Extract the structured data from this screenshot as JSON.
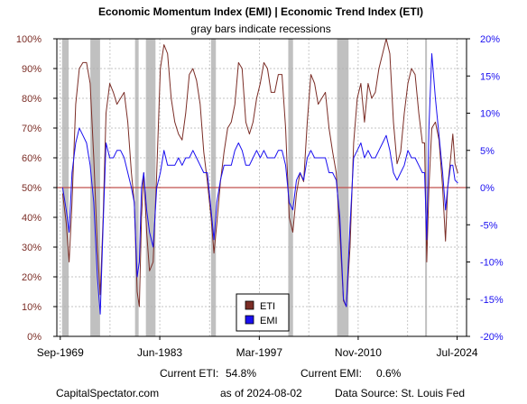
{
  "chart_data": {
    "type": "line",
    "title": "Economic Momentum Index (EMI) | Economic Trend Index (ETI)",
    "subtitle": "gray bars indicate recessions",
    "left_axis": {
      "ylim": [
        0,
        100
      ],
      "ticks": [
        0,
        10,
        20,
        30,
        40,
        50,
        60,
        70,
        80,
        90,
        100
      ],
      "tick_labels": [
        "0%",
        "10%",
        "20%",
        "30%",
        "40%",
        "50%",
        "60%",
        "70%",
        "80%",
        "90%",
        "100%"
      ]
    },
    "right_axis": {
      "ylim": [
        -20,
        20
      ],
      "ticks": [
        -20,
        -15,
        -10,
        -5,
        0,
        5,
        10,
        15,
        20
      ],
      "tick_labels": [
        "-20%",
        "-15%",
        "-10%",
        "-5%",
        "0%",
        "5%",
        "10%",
        "15%",
        "20%"
      ]
    },
    "x_axis": {
      "xlim": [
        1969.2,
        2025.8
      ],
      "ticks": [
        1969.67,
        1983.42,
        1997.17,
        2010.83,
        2024.5
      ],
      "tick_labels": [
        "Sep-1969",
        "Jun-1983",
        "Mar-1997",
        "Nov-2010",
        "Jul-2024"
      ]
    },
    "reference_line": {
      "axis": "right",
      "value": 0,
      "color": "#c0504d"
    },
    "recessions": [
      [
        1969.92,
        1970.83
      ],
      [
        1973.83,
        1975.17
      ],
      [
        1980.0,
        1980.5
      ],
      [
        1981.5,
        1982.83
      ],
      [
        1990.5,
        1991.17
      ],
      [
        2001.17,
        2001.83
      ],
      [
        2007.92,
        2009.5
      ],
      [
        2020.08,
        2020.33
      ]
    ],
    "legend": {
      "position": "bottom-left",
      "entries": [
        "ETI",
        "EMI"
      ]
    },
    "series": [
      {
        "name": "ETI",
        "axis": "left",
        "color": "#7b2d26",
        "points": [
          [
            1970.0,
            48
          ],
          [
            1970.5,
            38
          ],
          [
            1970.9,
            25
          ],
          [
            1971.3,
            45
          ],
          [
            1971.8,
            78
          ],
          [
            1972.3,
            90
          ],
          [
            1972.8,
            92
          ],
          [
            1973.3,
            92
          ],
          [
            1973.8,
            85
          ],
          [
            1974.3,
            60
          ],
          [
            1974.8,
            30
          ],
          [
            1975.2,
            14
          ],
          [
            1975.6,
            40
          ],
          [
            1976.0,
            75
          ],
          [
            1976.5,
            85
          ],
          [
            1977.0,
            82
          ],
          [
            1977.5,
            78
          ],
          [
            1978.0,
            80
          ],
          [
            1978.5,
            82
          ],
          [
            1979.0,
            72
          ],
          [
            1979.5,
            55
          ],
          [
            1979.9,
            45
          ],
          [
            1980.3,
            15
          ],
          [
            1980.6,
            10
          ],
          [
            1980.9,
            40
          ],
          [
            1981.2,
            55
          ],
          [
            1981.6,
            35
          ],
          [
            1982.0,
            22
          ],
          [
            1982.5,
            25
          ],
          [
            1983.0,
            55
          ],
          [
            1983.5,
            90
          ],
          [
            1984.0,
            98
          ],
          [
            1984.5,
            95
          ],
          [
            1985.0,
            80
          ],
          [
            1985.5,
            72
          ],
          [
            1986.0,
            68
          ],
          [
            1986.5,
            66
          ],
          [
            1987.0,
            75
          ],
          [
            1987.5,
            88
          ],
          [
            1988.0,
            90
          ],
          [
            1988.5,
            86
          ],
          [
            1989.0,
            78
          ],
          [
            1989.5,
            62
          ],
          [
            1990.0,
            52
          ],
          [
            1990.5,
            40
          ],
          [
            1990.9,
            28
          ],
          [
            1991.3,
            38
          ],
          [
            1991.8,
            52
          ],
          [
            1992.3,
            62
          ],
          [
            1992.8,
            70
          ],
          [
            1993.3,
            72
          ],
          [
            1993.8,
            78
          ],
          [
            1994.3,
            92
          ],
          [
            1994.8,
            90
          ],
          [
            1995.3,
            72
          ],
          [
            1995.8,
            68
          ],
          [
            1996.3,
            72
          ],
          [
            1996.8,
            80
          ],
          [
            1997.3,
            85
          ],
          [
            1997.8,
            92
          ],
          [
            1998.3,
            90
          ],
          [
            1998.8,
            82
          ],
          [
            1999.3,
            82
          ],
          [
            1999.8,
            88
          ],
          [
            2000.3,
            88
          ],
          [
            2000.8,
            70
          ],
          [
            2001.3,
            40
          ],
          [
            2001.8,
            35
          ],
          [
            2002.3,
            48
          ],
          [
            2002.8,
            55
          ],
          [
            2003.3,
            52
          ],
          [
            2003.8,
            72
          ],
          [
            2004.3,
            88
          ],
          [
            2004.8,
            85
          ],
          [
            2005.3,
            78
          ],
          [
            2005.8,
            80
          ],
          [
            2006.3,
            82
          ],
          [
            2006.8,
            70
          ],
          [
            2007.3,
            62
          ],
          [
            2007.8,
            55
          ],
          [
            2008.3,
            35
          ],
          [
            2008.8,
            12
          ],
          [
            2009.2,
            10
          ],
          [
            2009.7,
            30
          ],
          [
            2010.2,
            65
          ],
          [
            2010.7,
            80
          ],
          [
            2011.2,
            85
          ],
          [
            2011.7,
            72
          ],
          [
            2012.2,
            85
          ],
          [
            2012.7,
            80
          ],
          [
            2013.2,
            82
          ],
          [
            2013.7,
            90
          ],
          [
            2014.2,
            95
          ],
          [
            2014.7,
            100
          ],
          [
            2015.2,
            95
          ],
          [
            2015.7,
            72
          ],
          [
            2016.2,
            58
          ],
          [
            2016.7,
            62
          ],
          [
            2017.2,
            75
          ],
          [
            2017.7,
            85
          ],
          [
            2018.2,
            90
          ],
          [
            2018.7,
            88
          ],
          [
            2019.2,
            75
          ],
          [
            2019.7,
            65
          ],
          [
            2020.0,
            65
          ],
          [
            2020.3,
            25
          ],
          [
            2020.6,
            50
          ],
          [
            2021.0,
            70
          ],
          [
            2021.5,
            72
          ],
          [
            2022.0,
            66
          ],
          [
            2022.5,
            50
          ],
          [
            2022.9,
            32
          ],
          [
            2023.2,
            50
          ],
          [
            2023.6,
            60
          ],
          [
            2023.9,
            68
          ],
          [
            2024.2,
            58
          ],
          [
            2024.6,
            54.8
          ]
        ]
      },
      {
        "name": "EMI",
        "axis": "right",
        "color": "#1a0ff0",
        "points": [
          [
            1970.0,
            0
          ],
          [
            1970.5,
            -3
          ],
          [
            1970.9,
            -6
          ],
          [
            1971.3,
            2
          ],
          [
            1971.8,
            6
          ],
          [
            1972.3,
            8
          ],
          [
            1972.8,
            7
          ],
          [
            1973.3,
            6
          ],
          [
            1973.8,
            3
          ],
          [
            1974.3,
            -2
          ],
          [
            1974.8,
            -12
          ],
          [
            1975.2,
            -17
          ],
          [
            1975.6,
            -5
          ],
          [
            1976.0,
            6
          ],
          [
            1976.5,
            4
          ],
          [
            1977.0,
            4
          ],
          [
            1977.5,
            5
          ],
          [
            1978.0,
            5
          ],
          [
            1978.5,
            4
          ],
          [
            1979.0,
            2
          ],
          [
            1979.5,
            0
          ],
          [
            1979.9,
            -2
          ],
          [
            1980.3,
            -12
          ],
          [
            1980.6,
            -10
          ],
          [
            1980.9,
            0
          ],
          [
            1981.2,
            2
          ],
          [
            1981.6,
            -3
          ],
          [
            1982.0,
            -6
          ],
          [
            1982.5,
            -8
          ],
          [
            1983.0,
            0
          ],
          [
            1983.5,
            2
          ],
          [
            1984.0,
            5
          ],
          [
            1984.5,
            3
          ],
          [
            1985.0,
            3
          ],
          [
            1985.5,
            3
          ],
          [
            1986.0,
            4
          ],
          [
            1986.5,
            3
          ],
          [
            1987.0,
            4
          ],
          [
            1987.5,
            4
          ],
          [
            1988.0,
            5
          ],
          [
            1988.5,
            4
          ],
          [
            1989.0,
            3
          ],
          [
            1989.5,
            2
          ],
          [
            1990.0,
            2
          ],
          [
            1990.5,
            -3
          ],
          [
            1990.9,
            -7
          ],
          [
            1991.3,
            -2
          ],
          [
            1991.8,
            1
          ],
          [
            1992.3,
            3
          ],
          [
            1992.8,
            3
          ],
          [
            1993.3,
            3
          ],
          [
            1993.8,
            5
          ],
          [
            1994.3,
            6
          ],
          [
            1994.8,
            5
          ],
          [
            1995.3,
            3
          ],
          [
            1995.8,
            3
          ],
          [
            1996.3,
            4
          ],
          [
            1996.8,
            5
          ],
          [
            1997.3,
            4
          ],
          [
            1997.8,
            5
          ],
          [
            1998.3,
            4
          ],
          [
            1998.8,
            4
          ],
          [
            1999.3,
            4
          ],
          [
            1999.8,
            5
          ],
          [
            2000.3,
            5
          ],
          [
            2000.8,
            3
          ],
          [
            2001.3,
            -2
          ],
          [
            2001.8,
            -3
          ],
          [
            2002.3,
            1
          ],
          [
            2002.8,
            2
          ],
          [
            2003.3,
            1
          ],
          [
            2003.8,
            4
          ],
          [
            2004.3,
            5
          ],
          [
            2004.8,
            4
          ],
          [
            2005.3,
            4
          ],
          [
            2005.8,
            4
          ],
          [
            2006.3,
            4
          ],
          [
            2006.8,
            2
          ],
          [
            2007.3,
            2
          ],
          [
            2007.8,
            1
          ],
          [
            2008.3,
            -4
          ],
          [
            2008.8,
            -15
          ],
          [
            2009.2,
            -16
          ],
          [
            2009.7,
            -5
          ],
          [
            2010.2,
            4
          ],
          [
            2010.7,
            5
          ],
          [
            2011.2,
            6
          ],
          [
            2011.7,
            4
          ],
          [
            2012.2,
            5
          ],
          [
            2012.7,
            4
          ],
          [
            2013.2,
            4
          ],
          [
            2013.7,
            5
          ],
          [
            2014.2,
            6
          ],
          [
            2014.7,
            7
          ],
          [
            2015.2,
            5
          ],
          [
            2015.7,
            2
          ],
          [
            2016.2,
            1
          ],
          [
            2016.7,
            2
          ],
          [
            2017.2,
            3
          ],
          [
            2017.7,
            5
          ],
          [
            2018.2,
            4
          ],
          [
            2018.7,
            4
          ],
          [
            2019.2,
            3
          ],
          [
            2019.7,
            2
          ],
          [
            2020.0,
            2
          ],
          [
            2020.3,
            -7
          ],
          [
            2020.6,
            8
          ],
          [
            2021.0,
            18
          ],
          [
            2021.5,
            12
          ],
          [
            2022.0,
            7
          ],
          [
            2022.5,
            2
          ],
          [
            2022.9,
            -3
          ],
          [
            2023.2,
            0
          ],
          [
            2023.6,
            3
          ],
          [
            2023.9,
            3
          ],
          [
            2024.2,
            1
          ],
          [
            2024.6,
            0.6
          ]
        ]
      }
    ]
  },
  "footer": {
    "current_eti_label": "Current ETI:",
    "current_eti_value": "54.8%",
    "current_emi_label": "Current EMI:",
    "current_emi_value": "0.6%",
    "site": "CapitalSpectator.com",
    "as_of": "as of 2024-08-02",
    "source": "Data Source: St. Louis Fed"
  }
}
